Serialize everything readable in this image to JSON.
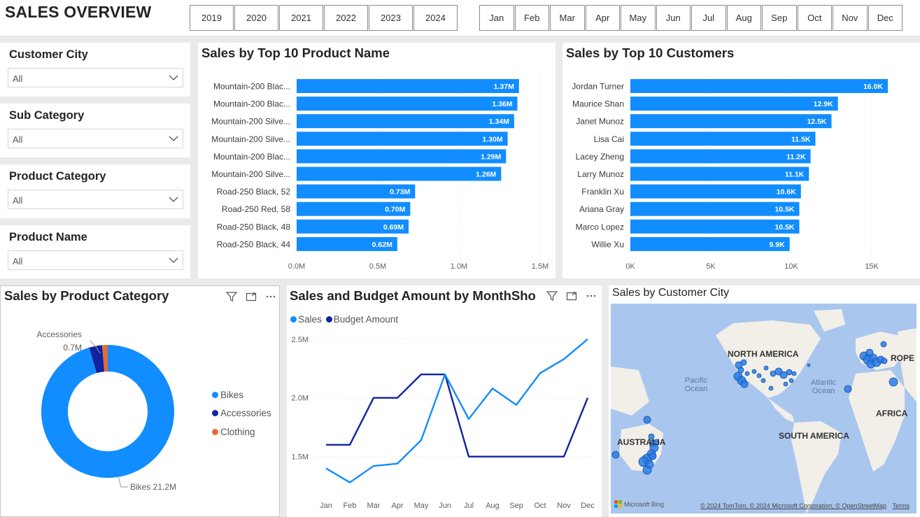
{
  "page_title": "SALES OVERVIEW",
  "years": [
    "2019",
    "2020",
    "2021",
    "2022",
    "2023",
    "2024"
  ],
  "months": [
    "Jan",
    "Feb",
    "Mar",
    "Apr",
    "May",
    "Jun",
    "Jul",
    "Aug",
    "Sep",
    "Oct",
    "Nov",
    "Dec"
  ],
  "filters": [
    {
      "label": "Customer City",
      "value": "All"
    },
    {
      "label": "Sub Category",
      "value": "All"
    },
    {
      "label": "Product Category",
      "value": "All"
    },
    {
      "label": "Product Name",
      "value": "All"
    }
  ],
  "icons": {
    "dropdown": "chevron-down-icon",
    "filter": "filter-icon",
    "focus": "focus-mode-icon",
    "more": "more-options-icon"
  },
  "colors": {
    "bar": "#118dff",
    "sales_line": "#118dff",
    "budget_line": "#12239e",
    "bikes": "#118dff",
    "accessories": "#12239e",
    "clothing": "#e66c37"
  },
  "chart_data": [
    {
      "type": "bar",
      "title": "Sales by Top 10 Product Name",
      "categories": [
        "Mountain-200 Blac...",
        "Mountain-200 Blac...",
        "Mountain-200 Silve...",
        "Mountain-200 Silve...",
        "Mountain-200 Blac...",
        "Mountain-200 Silve...",
        "Road-250 Black, 52",
        "Road-250 Red, 58",
        "Road-250 Black, 48",
        "Road-250 Black, 44"
      ],
      "values": [
        1.37,
        1.36,
        1.34,
        1.3,
        1.29,
        1.26,
        0.73,
        0.7,
        0.69,
        0.62
      ],
      "data_labels": [
        "1.37M",
        "1.36M",
        "1.34M",
        "1.30M",
        "1.29M",
        "1.26M",
        "0.73M",
        "0.70M",
        "0.69M",
        "0.62M"
      ],
      "xticks": [
        "0.0M",
        "0.5M",
        "1.0M",
        "1.5M"
      ],
      "xlim": [
        0,
        1.5
      ]
    },
    {
      "type": "bar",
      "title": "Sales by Top 10 Customers",
      "categories": [
        "Jordan Turner",
        "Maurice Shan",
        "Janet Munoz",
        "Lisa Cai",
        "Lacey Zheng",
        "Larry Munoz",
        "Franklin Xu",
        "Ariana Gray",
        "Marco Lopez",
        "Willie Xu"
      ],
      "values": [
        16.0,
        12.9,
        12.5,
        11.5,
        11.2,
        11.1,
        10.6,
        10.5,
        10.5,
        9.9
      ],
      "data_labels": [
        "16.0K",
        "12.9K",
        "12.5K",
        "11.5K",
        "11.2K",
        "11.1K",
        "10.6K",
        "10.5K",
        "10.5K",
        "9.9K"
      ],
      "xticks": [
        "0K",
        "5K",
        "10K",
        "15K"
      ],
      "xlim": [
        0,
        15
      ]
    },
    {
      "type": "pie",
      "title": "Sales by Product Category",
      "categories": [
        "Bikes",
        "Accessories",
        "Clothing"
      ],
      "values": [
        21.2,
        0.7,
        0.3
      ],
      "data_labels": [
        {
          "name": "Accessories",
          "value": "0.7M"
        },
        {
          "name": "Bikes",
          "value": "21.2M"
        }
      ]
    },
    {
      "type": "line",
      "title": "Sales and Budget Amount by MonthSho",
      "x": [
        "Jan",
        "Feb",
        "Mar",
        "Apr",
        "May",
        "Jun",
        "Jul",
        "Aug",
        "Sep",
        "Oct",
        "Nov",
        "Dec"
      ],
      "series": [
        {
          "name": "Sales",
          "values": [
            1.4,
            1.28,
            1.42,
            1.44,
            1.64,
            2.2,
            1.82,
            2.08,
            1.94,
            2.21,
            2.33,
            2.5
          ]
        },
        {
          "name": "Budget Amount",
          "values": [
            1.6,
            1.6,
            2.0,
            2.0,
            2.2,
            2.2,
            1.5,
            1.5,
            1.5,
            1.5,
            1.5,
            2.0
          ]
        }
      ],
      "yticks": [
        "1.5M",
        "2.0M",
        "2.5M"
      ],
      "ylim": [
        1.2,
        2.6
      ]
    }
  ],
  "map": {
    "title": "Sales by Customer City",
    "labels": [
      "NORTH AMERICA",
      "Pacific\nOcean",
      "Atlantic\nOcean",
      "ROPE",
      "AFRICA",
      "SOUTH AMERICA",
      "AUSTRALIA"
    ],
    "attribution": "© 2024 TomTom, © 2024 Microsoft Corporation, © OpenStreetMap",
    "terms": "Terms",
    "brand": "Microsoft Bing"
  }
}
